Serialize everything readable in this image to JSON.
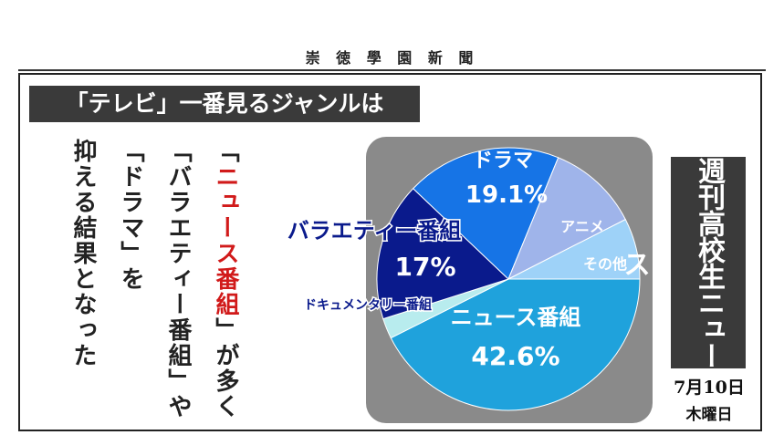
{
  "masthead": "崇 徳 學 園 新 聞",
  "headline": "「テレビ」一番見るジャンルは",
  "article": {
    "col1_red": "ニュース番組",
    "col1_open": "「",
    "col1_rest": "」が多く",
    "col2": "「バラエティー番組」や",
    "col3": "「ドラマ」を",
    "col4": "抑える結果となった"
  },
  "weekly_label": "週刊高校生ニュース",
  "date_line": "7月10日",
  "weekday": "木曜日",
  "chart_data": {
    "type": "pie",
    "slices": [
      {
        "label": "ニュース番組",
        "value": 42.6,
        "value_text": "42.6%",
        "color": "#1fa2dc"
      },
      {
        "label": "ドキュメンタリー番組",
        "value": 2.5,
        "value_text": "",
        "color": "#b8ecee"
      },
      {
        "label": "バラエティー番組",
        "value": 17.0,
        "value_text": "17%",
        "color": "#0a1a8c"
      },
      {
        "label": "ドラマ",
        "value": 19.1,
        "value_text": "19.1%",
        "color": "#1674e6"
      },
      {
        "label": "アニメ",
        "value": 11.3,
        "value_text": "",
        "color": "#9fb4ea"
      },
      {
        "label": "その他",
        "value": 7.5,
        "value_text": "",
        "color": "#9ed2f8"
      }
    ],
    "colors": {
      "label_dark": "#0a1a8c",
      "label_light": "#ffffff"
    }
  }
}
